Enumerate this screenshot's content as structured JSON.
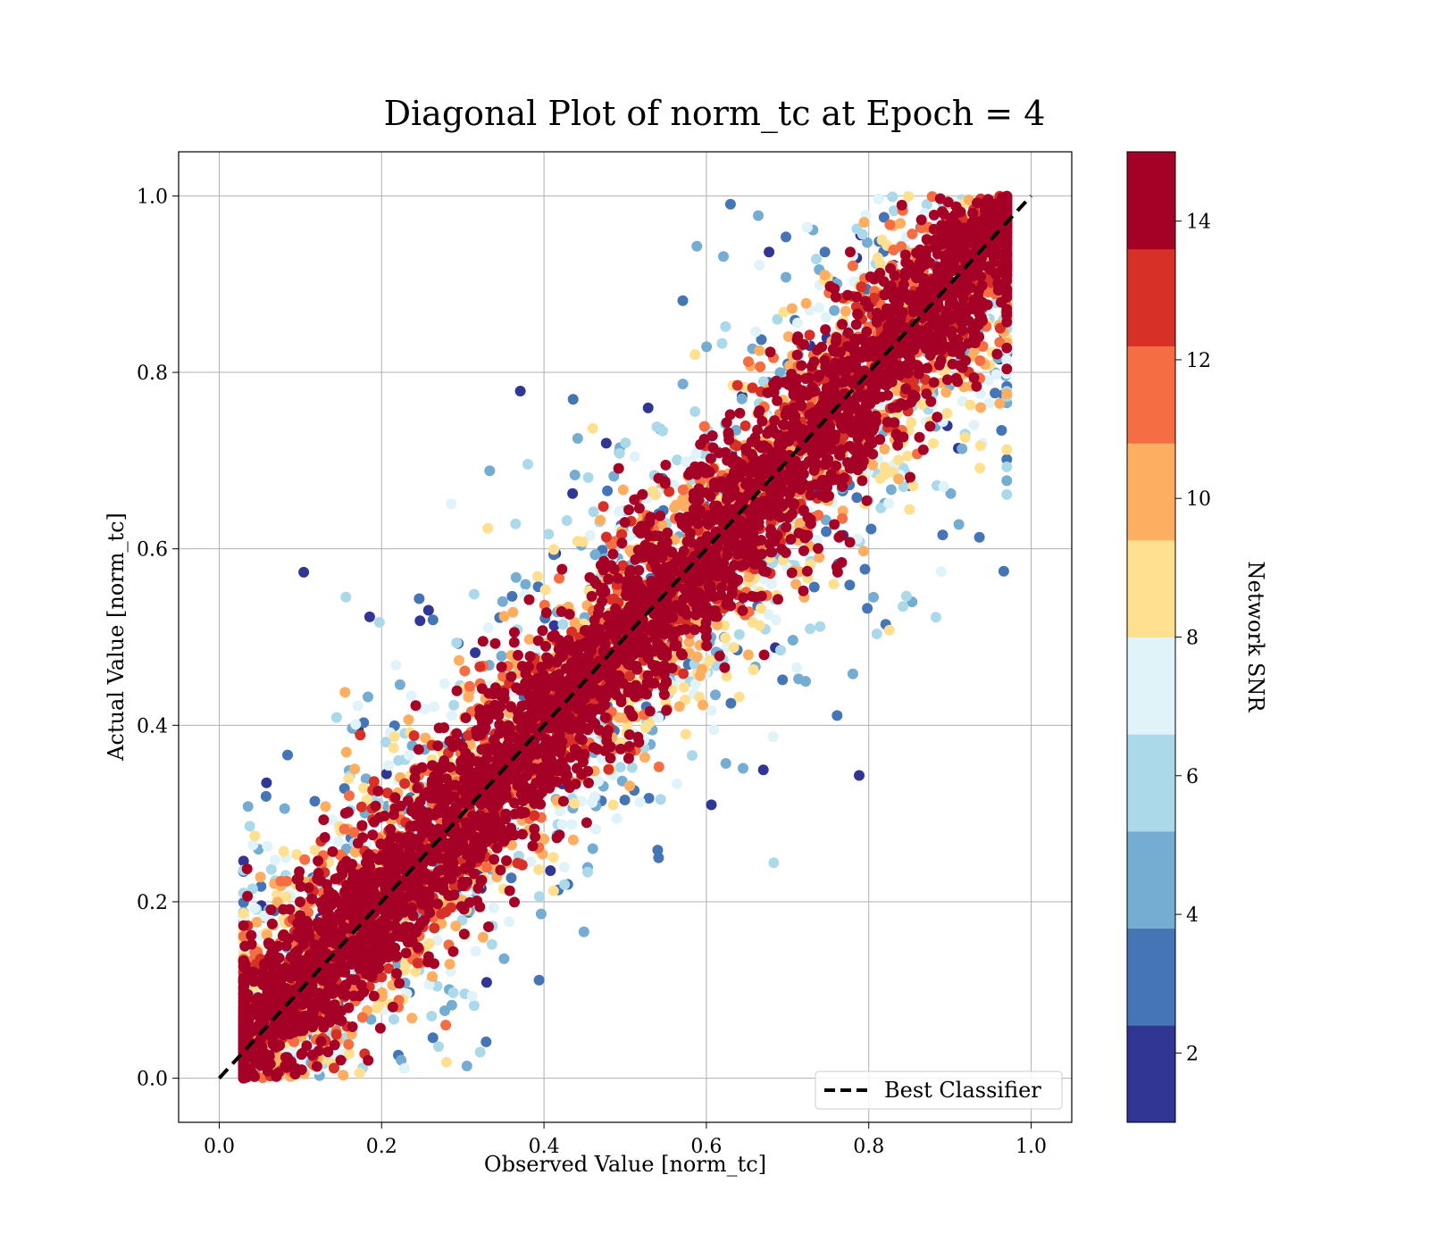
{
  "chart_data": {
    "type": "scatter",
    "title": "Diagonal Plot of norm_tc at Epoch = 4",
    "xlabel": "Observed Value [norm_tc]",
    "ylabel": "Actual Value [norm_tc]",
    "xlim": [
      -0.05,
      1.05
    ],
    "ylim": [
      -0.05,
      1.05
    ],
    "xticks": [
      "0.0",
      "0.2",
      "0.4",
      "0.6",
      "0.8",
      "1.0"
    ],
    "yticks": [
      "0.0",
      "0.2",
      "0.4",
      "0.6",
      "0.8",
      "1.0"
    ],
    "grid": true,
    "reference_line": {
      "name": "Best Classifier",
      "x": [
        0,
        1
      ],
      "y": [
        0,
        1
      ],
      "style": "dashed",
      "color": "#000000"
    },
    "legend": {
      "placement": "lower-right",
      "entries": [
        "Best Classifier"
      ]
    },
    "colorbar": {
      "label": "Network SNR",
      "range": [
        1,
        15
      ],
      "ticks": [
        "2",
        "4",
        "6",
        "8",
        "10",
        "12",
        "14"
      ],
      "colormap": [
        "#313695",
        "#4575b4",
        "#74add1",
        "#abd9e9",
        "#e0f3f8",
        "#fee090",
        "#fdae61",
        "#f46d43",
        "#d73027",
        "#a50026"
      ]
    },
    "point_distribution": {
      "description": "dense band along y = x; high-SNR (dark red) points cluster near the diagonal, low-SNR points scatter away from it; observed values span approx 0.03 to 0.97, actual values clipped to [0, 1]",
      "x_range": [
        0.03,
        0.97
      ],
      "y_range": [
        0.0,
        1.0
      ]
    }
  }
}
